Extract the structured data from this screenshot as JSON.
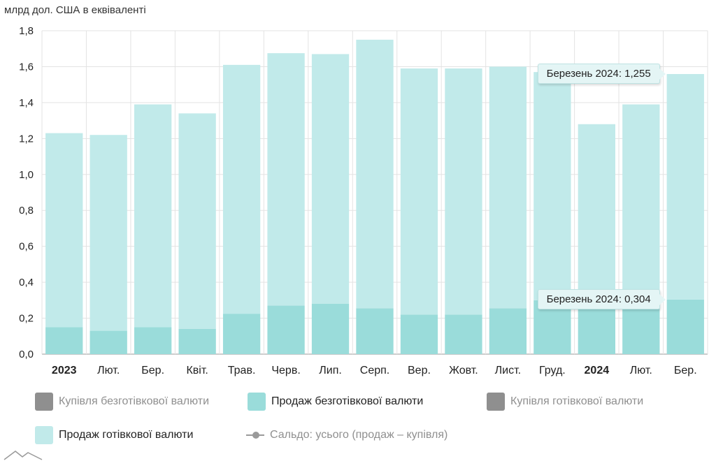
{
  "chart_data": {
    "type": "bar",
    "stacked": true,
    "unit_label": "млрд дол. США в еквіваленті",
    "categories": [
      "2023",
      "Лют.",
      "Бер.",
      "Квіт.",
      "Трав.",
      "Черв.",
      "Лип.",
      "Серп.",
      "Вер.",
      "Жовт.",
      "Лист.",
      "Груд.",
      "2024",
      "Лют.",
      "Бер."
    ],
    "bold_categories": [
      "2023",
      "2024"
    ],
    "ylim": [
      0,
      1.8
    ],
    "yticks": [
      "0,0",
      "0,2",
      "0,4",
      "0,6",
      "0,8",
      "1,0",
      "1,2",
      "1,4",
      "1,6",
      "1,8"
    ],
    "grid": true,
    "series": [
      {
        "name": "Продаж безготівкової валюти",
        "color": "#9adcda",
        "values": [
          0.15,
          0.13,
          0.15,
          0.14,
          0.225,
          0.27,
          0.28,
          0.255,
          0.22,
          0.22,
          0.255,
          0.3,
          0.28,
          0.29,
          0.304
        ]
      },
      {
        "name": "Продаж готівкової валюти",
        "color": "#c1eaea",
        "values": [
          1.08,
          1.09,
          1.24,
          1.2,
          1.385,
          1.405,
          1.39,
          1.495,
          1.37,
          1.37,
          1.345,
          1.27,
          1.0,
          1.1,
          1.255
        ]
      }
    ],
    "legend": {
      "placement": "bottom",
      "items": [
        {
          "label": "Купівля безготівкової валюти",
          "color": "#8f8f8f",
          "active": false,
          "kind": "box"
        },
        {
          "label": "Продаж безготівкової валюти",
          "color": "#9adcda",
          "active": true,
          "kind": "box"
        },
        {
          "label": "Купівля готівкової валюти",
          "color": "#8f8f8f",
          "active": false,
          "kind": "box"
        },
        {
          "label": "Продаж готівкової валюти",
          "color": "#c1eaea",
          "active": true,
          "kind": "box"
        },
        {
          "label": "Сальдо: усього (продаж – купівля)",
          "color": "#9a9a9a",
          "active": false,
          "kind": "line"
        }
      ]
    },
    "tooltips": [
      {
        "text": "Березень 2024: 1,255",
        "series": 1,
        "index": 14
      },
      {
        "text": "Березень 2024: 0,304",
        "series": 0,
        "index": 14
      }
    ]
  }
}
